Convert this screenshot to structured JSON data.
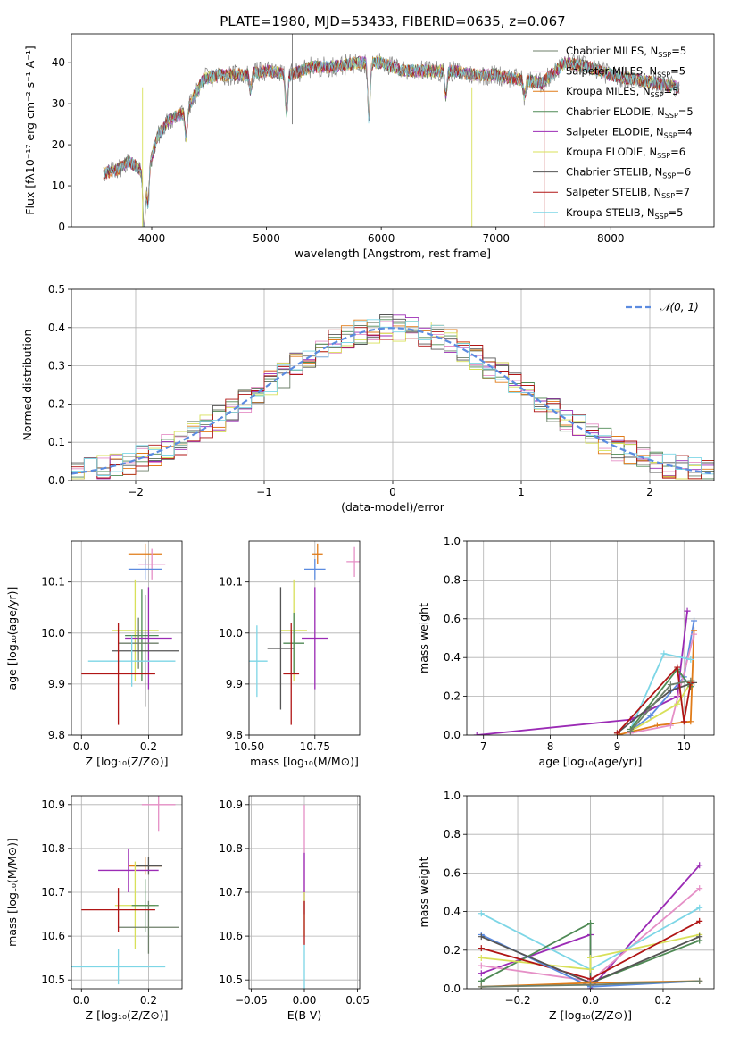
{
  "figure": {
    "title": "PLATE=1980, MJD=53433, FIBERID=0635, z=0.067"
  },
  "colors": {
    "Chabrier MILES": "#6e7f6a",
    "Salpeter MILES": "#e58fc6",
    "Kroupa MILES": "#e07b18",
    "Chabrier ELODIE": "#4f8a55",
    "Salpeter ELODIE": "#9b2bb5",
    "Kroupa ELODIE": "#d8e05a",
    "Chabrier STELIB": "#555555",
    "Salpeter STELIB": "#b01515",
    "Kroupa STELIB": "#7dd6e6",
    "Kroupa MILES alt": "#5b8be0",
    "gauss": "#5b8be0"
  },
  "chart_data": [
    {
      "id": "spectrum",
      "type": "line",
      "title": "PLATE=1980, MJD=53433, FIBERID=0635, z=0.067",
      "xlabel": "wavelength [Angstrom, rest frame]",
      "ylabel": "Flux [fλ10⁻¹⁷ erg cm⁻² s⁻¹ A⁻¹]",
      "xlim": [
        3300,
        8900
      ],
      "ylim": [
        0,
        47
      ],
      "xticks": [
        "4000",
        "5000",
        "6000",
        "7000",
        "8000"
      ],
      "yticks": [
        "0",
        "10",
        "20",
        "30",
        "40"
      ],
      "legend_position": "top-right",
      "legend": [
        {
          "label": "Chabrier MILES, N",
          "sub": "SSP",
          "suffix": "=5",
          "color": "#6e7f6a"
        },
        {
          "label": "Salpeter MILES, N",
          "sub": "SSP",
          "suffix": "=5",
          "color": "#e58fc6"
        },
        {
          "label": "Kroupa MILES, N",
          "sub": "SSP",
          "suffix": "=5",
          "color": "#e07b18"
        },
        {
          "label": "Chabrier ELODIE, N",
          "sub": "SSP",
          "suffix": "=5",
          "color": "#4f8a55"
        },
        {
          "label": "Salpeter ELODIE, N",
          "sub": "SSP",
          "suffix": "=4",
          "color": "#9b2bb5"
        },
        {
          "label": "Kroupa ELODIE, N",
          "sub": "SSP",
          "suffix": "=6",
          "color": "#d8e05a"
        },
        {
          "label": "Chabrier STELIB, N",
          "sub": "SSP",
          "suffix": "=6",
          "color": "#555555"
        },
        {
          "label": "Salpeter STELIB, N",
          "sub": "SSP",
          "suffix": "=7",
          "color": "#b01515"
        },
        {
          "label": "Kroupa STELIB, N",
          "sub": "SSP",
          "suffix": "=5",
          "color": "#7dd6e6"
        }
      ],
      "continuum": {
        "x": [
          3580,
          3700,
          3800,
          3900,
          3950,
          4050,
          4150,
          4300,
          4450,
          4600,
          4800,
          5000,
          5200,
          5400,
          5600,
          5800,
          6000,
          6200,
          6400,
          6600,
          6800,
          7000,
          7200,
          7400,
          7600,
          7800,
          8000,
          8200,
          8400,
          8600
        ],
        "y": [
          13,
          14,
          16,
          14,
          12,
          22,
          26,
          28,
          36,
          37,
          37,
          38,
          37,
          39,
          39,
          40,
          40,
          38,
          38,
          38,
          37,
          37,
          36,
          35,
          40,
          39,
          37,
          36,
          35,
          34
        ]
      },
      "absorption_lines": [
        {
          "x": 3933,
          "depth": 14
        },
        {
          "x": 3968,
          "depth": 8
        },
        {
          "x": 4300,
          "depth": 6
        },
        {
          "x": 4861,
          "depth": 4
        },
        {
          "x": 5175,
          "depth": 10
        },
        {
          "x": 5893,
          "depth": 14
        },
        {
          "x": 6563,
          "depth": 6
        },
        {
          "x": 7250,
          "depth": 4
        }
      ]
    },
    {
      "id": "residuals",
      "type": "bar",
      "xlabel": "(data-model)/error",
      "ylabel": "Normed distribution",
      "xlim": [
        -2.5,
        2.5
      ],
      "ylim": [
        0,
        0.5
      ],
      "xticks": [
        "−2",
        "−1",
        "0",
        "1",
        "2"
      ],
      "yticks": [
        "0.0",
        "0.1",
        "0.2",
        "0.3",
        "0.4",
        "0.5"
      ],
      "legend_position": "top-right",
      "gauss_label": "𝒩(0, 1)",
      "bin_width": 0.1,
      "bins_start": -2.5
    },
    {
      "id": "age-vs-Z",
      "type": "scatter",
      "xlabel": "Z [log₁₀(Z/Z⊙)]",
      "ylabel": "age  [log₁₀(age/yr)]",
      "xlim": [
        -0.03,
        0.3
      ],
      "ylim": [
        9.8,
        10.18
      ],
      "xticks": [
        "0.0",
        "0.2"
      ],
      "yticks": [
        "9.8",
        "9.9",
        "10.0",
        "10.1"
      ],
      "points": [
        {
          "model": "Kroupa MILES",
          "x": 0.19,
          "xerr": 0.05,
          "y": 10.155,
          "yerr": 0.02,
          "color": "#e07b18"
        },
        {
          "model": "Salpeter MILES",
          "x": 0.21,
          "xerr": 0.04,
          "y": 10.135,
          "yerr": 0.03,
          "color": "#e58fc6"
        },
        {
          "model": "Kroupa MILES alt",
          "x": 0.19,
          "xerr": 0.05,
          "y": 10.125,
          "yerr": 0.02,
          "color": "#5b8be0"
        },
        {
          "model": "Kroupa ELODIE",
          "x": 0.16,
          "xerr": 0.07,
          "y": 10.005,
          "yerr": 0.1,
          "color": "#d8e05a"
        },
        {
          "model": "Chabrier ELODIE",
          "x": 0.18,
          "xerr": 0.05,
          "y": 9.995,
          "yerr": 0.09,
          "color": "#4f8a55"
        },
        {
          "model": "Salpeter ELODIE",
          "x": 0.2,
          "xerr": 0.07,
          "y": 9.99,
          "yerr": 0.1,
          "color": "#9b2bb5"
        },
        {
          "model": "Chabrier MILES",
          "x": 0.17,
          "xerr": 0.06,
          "y": 9.98,
          "yerr": 0.05,
          "color": "#6e7f6a"
        },
        {
          "model": "Chabrier STELIB",
          "x": 0.19,
          "xerr": 0.1,
          "y": 9.965,
          "yerr": 0.11,
          "color": "#555555"
        },
        {
          "model": "Kroupa STELIB",
          "x": 0.15,
          "xerr": 0.13,
          "y": 9.945,
          "yerr": 0.05,
          "color": "#7dd6e6"
        },
        {
          "model": "Salpeter STELIB",
          "x": 0.11,
          "xerr": 0.11,
          "y": 9.92,
          "yerr": 0.1,
          "color": "#b01515"
        }
      ]
    },
    {
      "id": "age-vs-mass",
      "type": "scatter",
      "xlabel": "mass [log₁₀(M/M⊙)]",
      "ylabel": "",
      "xlim": [
        10.5,
        10.92
      ],
      "ylim": [
        9.8,
        10.18
      ],
      "xticks": [
        "10.50",
        "10.75"
      ],
      "yticks": [
        "9.8",
        "9.9",
        "10.0",
        "10.1"
      ],
      "points": [
        {
          "model": "Kroupa MILES",
          "x": 10.76,
          "xerr": 0.02,
          "y": 10.155,
          "yerr": 0.02,
          "color": "#e07b18"
        },
        {
          "model": "Salpeter MILES",
          "x": 10.9,
          "xerr": 0.03,
          "y": 10.14,
          "yerr": 0.03,
          "color": "#e58fc6"
        },
        {
          "model": "Kroupa MILES alt",
          "x": 10.75,
          "xerr": 0.04,
          "y": 10.125,
          "yerr": 0.02,
          "color": "#5b8be0"
        },
        {
          "model": "Kroupa ELODIE",
          "x": 10.67,
          "xerr": 0.05,
          "y": 10.005,
          "yerr": 0.1,
          "color": "#d8e05a"
        },
        {
          "model": "Salpeter ELODIE",
          "x": 10.75,
          "xerr": 0.05,
          "y": 9.99,
          "yerr": 0.1,
          "color": "#9b2bb5"
        },
        {
          "model": "Chabrier ELODIE",
          "x": 10.67,
          "xerr": 0.04,
          "y": 9.98,
          "yerr": 0.06,
          "color": "#4f8a55"
        },
        {
          "model": "Chabrier STELIB",
          "x": 10.62,
          "xerr": 0.05,
          "y": 9.97,
          "yerr": 0.12,
          "color": "#555555"
        },
        {
          "model": "Kroupa STELIB",
          "x": 10.53,
          "xerr": 0.04,
          "y": 9.945,
          "yerr": 0.07,
          "color": "#7dd6e6"
        },
        {
          "model": "Salpeter STELIB",
          "x": 10.66,
          "xerr": 0.03,
          "y": 9.92,
          "yerr": 0.1,
          "color": "#b01515"
        }
      ]
    },
    {
      "id": "massweight-vs-age",
      "type": "line",
      "xlabel": "age  [log₁₀(age/yr)]",
      "ylabel": "mass weight",
      "xlim": [
        6.75,
        10.45
      ],
      "ylim": [
        0,
        1
      ],
      "xticks": [
        "7",
        "8",
        "9",
        "10"
      ],
      "yticks": [
        "0.0",
        "0.2",
        "0.4",
        "0.6",
        "0.8",
        "1.0"
      ],
      "series": [
        {
          "model": "Salpeter ELODIE",
          "color": "#9b2bb5",
          "x": [
            6.9,
            9.2,
            9.9,
            10.05
          ],
          "y": [
            0.0,
            0.08,
            0.2,
            0.64
          ]
        },
        {
          "model": "Kroupa MILES alt",
          "color": "#5b8be0",
          "x": [
            9.2,
            9.5,
            10.0,
            10.15
          ],
          "y": [
            0.02,
            0.1,
            0.3,
            0.59
          ]
        },
        {
          "model": "Kroupa MILES",
          "color": "#e07b18",
          "x": [
            9.0,
            9.6,
            10.1,
            10.15
          ],
          "y": [
            0.0,
            0.05,
            0.07,
            0.54
          ]
        },
        {
          "model": "Salpeter MILES",
          "color": "#e58fc6",
          "x": [
            9.2,
            9.8,
            10.15
          ],
          "y": [
            0.01,
            0.05,
            0.52
          ]
        },
        {
          "model": "Kroupa STELIB",
          "color": "#7dd6e6",
          "x": [
            9.2,
            9.7,
            10.1
          ],
          "y": [
            0.03,
            0.42,
            0.39
          ]
        },
        {
          "model": "Kroupa ELODIE",
          "color": "#d8e05a",
          "x": [
            9.2,
            9.9,
            10.1
          ],
          "y": [
            0.02,
            0.16,
            0.27
          ]
        },
        {
          "model": "Chabrier ELODIE",
          "color": "#4f8a55",
          "x": [
            9.2,
            9.9,
            10.1
          ],
          "y": [
            0.03,
            0.34,
            0.25
          ]
        },
        {
          "model": "Chabrier STELIB",
          "color": "#555555",
          "x": [
            9.0,
            9.8,
            10.15
          ],
          "y": [
            0.01,
            0.23,
            0.27
          ]
        },
        {
          "model": "Salpeter STELIB",
          "color": "#b01515",
          "x": [
            9.0,
            9.9,
            10.0,
            10.1
          ],
          "y": [
            0.01,
            0.35,
            0.07,
            0.27
          ]
        },
        {
          "model": "Chabrier MILES",
          "color": "#6e7f6a",
          "x": [
            9.2,
            9.8,
            10.1
          ],
          "y": [
            0.02,
            0.26,
            0.28
          ]
        }
      ]
    },
    {
      "id": "mass-vs-Z",
      "type": "scatter",
      "xlabel": "Z [log₁₀(Z/Z⊙)]",
      "ylabel": "mass [log₁₀(M/M⊙)]",
      "xlim": [
        -0.03,
        0.3
      ],
      "ylim": [
        10.48,
        10.92
      ],
      "xticks": [
        "0.0",
        "0.2"
      ],
      "yticks": [
        "10.5",
        "10.6",
        "10.7",
        "10.8",
        "10.9"
      ],
      "points": [
        {
          "model": "Salpeter MILES",
          "x": 0.23,
          "xerr": 0.05,
          "y": 10.9,
          "yerr": 0.06,
          "color": "#e58fc6"
        },
        {
          "model": "Kroupa MILES",
          "x": 0.19,
          "xerr": 0.05,
          "y": 10.76,
          "yerr": 0.02,
          "color": "#e07b18"
        },
        {
          "model": "Chabrier STELIB",
          "x": 0.2,
          "xerr": 0.04,
          "y": 10.76,
          "yerr": 0.02,
          "color": "#555555"
        },
        {
          "model": "Salpeter ELODIE",
          "x": 0.14,
          "xerr": 0.09,
          "y": 10.75,
          "yerr": 0.05,
          "color": "#9b2bb5"
        },
        {
          "model": "Kroupa ELODIE",
          "x": 0.16,
          "xerr": 0.06,
          "y": 10.67,
          "yerr": 0.1,
          "color": "#d8e05a"
        },
        {
          "model": "Chabrier ELODIE",
          "x": 0.19,
          "xerr": 0.04,
          "y": 10.67,
          "yerr": 0.06,
          "color": "#4f8a55"
        },
        {
          "model": "Chabrier MILES",
          "x": 0.2,
          "xerr": 0.09,
          "y": 10.62,
          "yerr": 0.06,
          "color": "#6e7f6a"
        },
        {
          "model": "Salpeter STELIB",
          "x": 0.11,
          "xerr": 0.11,
          "y": 10.66,
          "yerr": 0.05,
          "color": "#b01515"
        },
        {
          "model": "Kroupa STELIB",
          "x": 0.11,
          "xerr": 0.14,
          "y": 10.53,
          "yerr": 0.04,
          "color": "#7dd6e6"
        }
      ]
    },
    {
      "id": "mass-vs-ebv",
      "type": "scatter",
      "xlabel": "E(B-V)",
      "ylabel": "",
      "xlim": [
        -0.052,
        0.052
      ],
      "ylim": [
        10.48,
        10.92
      ],
      "xticks": [
        "−0.05",
        "0.00",
        "0.05"
      ],
      "yticks": [
        "10.5",
        "10.6",
        "10.7",
        "10.8",
        "10.9"
      ],
      "points": [
        {
          "model": "Salpeter MILES",
          "x": 0.0,
          "xerr": 0.0,
          "y": 10.8,
          "yerr": 0.1,
          "color": "#e58fc6"
        },
        {
          "model": "Salpeter ELODIE",
          "x": 0.0,
          "xerr": 0.0,
          "y": 10.72,
          "yerr": 0.07,
          "color": "#9b2bb5"
        },
        {
          "model": "Kroupa ELODIE",
          "x": 0.0,
          "xerr": 0.0,
          "y": 10.65,
          "yerr": 0.05,
          "color": "#d8e05a"
        },
        {
          "model": "Salpeter STELIB",
          "x": 0.0,
          "xerr": 0.0,
          "y": 10.63,
          "yerr": 0.05,
          "color": "#b01515"
        },
        {
          "model": "Kroupa STELIB",
          "x": 0.0,
          "xerr": 0.0,
          "y": 10.53,
          "yerr": 0.05,
          "color": "#7dd6e6"
        }
      ]
    },
    {
      "id": "massweight-vs-Z",
      "type": "line",
      "xlabel": "Z [log₁₀(Z/Z⊙)]",
      "ylabel": "mass weight",
      "xlim": [
        -0.34,
        0.34
      ],
      "ylim": [
        0,
        1
      ],
      "xticks": [
        "−0.2",
        "0.0",
        "0.2"
      ],
      "yticks": [
        "0.0",
        "0.2",
        "0.4",
        "0.6",
        "0.8",
        "1.0"
      ],
      "series": [
        {
          "model": "Salpeter ELODIE",
          "color": "#9b2bb5",
          "x": [
            -0.3,
            0.0,
            0.0,
            0.3
          ],
          "y": [
            0.08,
            0.28,
            0.0,
            0.64
          ]
        },
        {
          "model": "Salpeter MILES",
          "color": "#e58fc6",
          "x": [
            -0.3,
            0.0,
            0.3
          ],
          "y": [
            0.12,
            0.04,
            0.52
          ]
        },
        {
          "model": "Kroupa STELIB",
          "color": "#7dd6e6",
          "x": [
            -0.3,
            0.0,
            0.3
          ],
          "y": [
            0.39,
            0.1,
            0.42
          ]
        },
        {
          "model": "Chabrier ELODIE",
          "color": "#4f8a55",
          "x": [
            -0.3,
            0.0,
            0.0,
            0.3
          ],
          "y": [
            0.04,
            0.34,
            0.03,
            0.25
          ]
        },
        {
          "model": "Kroupa ELODIE",
          "color": "#d8e05a",
          "x": [
            -0.3,
            0.0,
            0.0,
            0.3
          ],
          "y": [
            0.16,
            0.1,
            0.16,
            0.28
          ]
        },
        {
          "model": "Salpeter STELIB",
          "color": "#b01515",
          "x": [
            -0.3,
            0.0,
            0.3
          ],
          "y": [
            0.21,
            0.05,
            0.35
          ]
        },
        {
          "model": "Kroupa MILES alt",
          "color": "#5b8be0",
          "x": [
            -0.3,
            0.0,
            0.3
          ],
          "y": [
            0.28,
            0.01,
            0.04
          ]
        },
        {
          "model": "Chabrier STELIB",
          "color": "#555555",
          "x": [
            -0.3,
            0.0,
            0.3
          ],
          "y": [
            0.27,
            0.03,
            0.27
          ]
        },
        {
          "model": "Kroupa MILES",
          "color": "#e07b18",
          "x": [
            -0.3,
            0.0,
            0.3
          ],
          "y": [
            0.01,
            0.03,
            0.04
          ]
        },
        {
          "model": "Chabrier MILES",
          "color": "#6e7f6a",
          "x": [
            -0.3,
            0.0,
            0.3
          ],
          "y": [
            0.01,
            0.02,
            0.04
          ]
        }
      ]
    }
  ]
}
